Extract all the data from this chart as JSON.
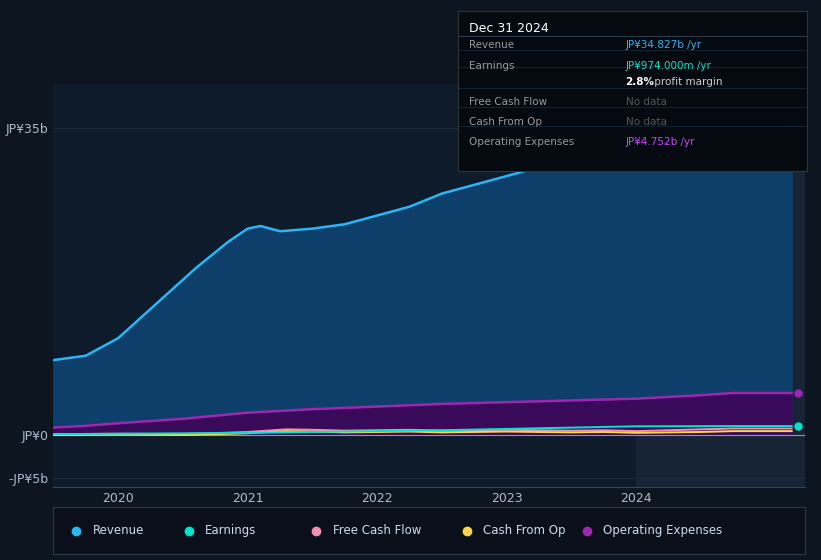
{
  "bg_color": "#0d1520",
  "plot_bg_color": "#0d1b2a",
  "grid_color": "#1a2e3e",
  "tooltip_title": "Dec 31 2024",
  "ylim": [
    -6000000000.0,
    40000000000.0
  ],
  "yticks_labels": [
    "JP¥35b",
    "JP¥0",
    "-JP¥5b"
  ],
  "yticks_values": [
    35000000000.0,
    0,
    -5000000000.0
  ],
  "xlim": [
    2019.5,
    2025.3
  ],
  "xticks": [
    2020,
    2021,
    2022,
    2023,
    2024
  ],
  "x_revenue": [
    2019.5,
    2019.75,
    2020.0,
    2020.3,
    2020.6,
    2020.85,
    2021.0,
    2021.1,
    2021.25,
    2021.5,
    2021.75,
    2022.0,
    2022.25,
    2022.5,
    2022.75,
    2023.0,
    2023.25,
    2023.5,
    2023.75,
    2024.0,
    2024.25,
    2024.5,
    2024.75,
    2025.0,
    2025.2
  ],
  "y_revenue": [
    8500000000.0,
    9000000000.0,
    11000000000.0,
    15000000000.0,
    19000000000.0,
    22000000000.0,
    23500000000.0,
    23800000000.0,
    23200000000.0,
    23500000000.0,
    24000000000.0,
    25000000000.0,
    26000000000.0,
    27500000000.0,
    28500000000.0,
    29500000000.0,
    30500000000.0,
    31500000000.0,
    32500000000.0,
    33500000000.0,
    34200000000.0,
    34600000000.0,
    34900000000.0,
    34827000000.0,
    34827000000.0
  ],
  "revenue_color": "#29b6f6",
  "revenue_fill_color": "#0d3f6a",
  "x_earnings": [
    2019.5,
    2020.0,
    2020.5,
    2021.0,
    2021.5,
    2022.0,
    2022.5,
    2023.0,
    2023.5,
    2024.0,
    2024.75,
    2025.2
  ],
  "y_earnings": [
    50000000.0,
    100000000.0,
    150000000.0,
    200000000.0,
    300000000.0,
    400000000.0,
    500000000.0,
    650000000.0,
    800000000.0,
    950000000.0,
    974000000.0,
    974000000.0
  ],
  "earnings_color": "#00e5cc",
  "x_fcf": [
    2019.5,
    2020.0,
    2020.5,
    2021.0,
    2021.3,
    2021.5,
    2021.75,
    2022.0,
    2022.25,
    2022.5,
    2022.75,
    2023.0,
    2023.25,
    2023.5,
    2023.75,
    2024.0,
    2024.5,
    2024.75,
    2025.2
  ],
  "y_fcf": [
    50000000.0,
    100000000.0,
    50000000.0,
    300000000.0,
    600000000.0,
    550000000.0,
    450000000.0,
    500000000.0,
    550000000.0,
    450000000.0,
    500000000.0,
    550000000.0,
    500000000.0,
    450000000.0,
    500000000.0,
    400000000.0,
    600000000.0,
    700000000.0,
    700000000.0
  ],
  "fcf_color": "#f48fb1",
  "x_cashfromop": [
    2019.5,
    2020.0,
    2020.5,
    2021.0,
    2021.3,
    2021.5,
    2021.75,
    2022.0,
    2022.25,
    2022.5,
    2022.75,
    2023.0,
    2023.25,
    2023.5,
    2023.75,
    2024.0,
    2024.5,
    2024.75,
    2025.2
  ],
  "y_cashfromop": [
    -50000000.0,
    0.0,
    -50000000.0,
    150000000.0,
    400000000.0,
    350000000.0,
    250000000.0,
    300000000.0,
    350000000.0,
    250000000.0,
    300000000.0,
    350000000.0,
    300000000.0,
    250000000.0,
    300000000.0,
    200000000.0,
    300000000.0,
    400000000.0,
    400000000.0
  ],
  "cashfromop_color": "#ffd54f",
  "x_opex": [
    2019.5,
    2019.75,
    2020.0,
    2020.5,
    2021.0,
    2021.5,
    2022.0,
    2022.5,
    2023.0,
    2023.5,
    2024.0,
    2024.5,
    2024.75,
    2025.0,
    2025.2
  ],
  "y_opex": [
    800000000.0,
    1000000000.0,
    1300000000.0,
    1800000000.0,
    2500000000.0,
    2900000000.0,
    3200000000.0,
    3500000000.0,
    3700000000.0,
    3900000000.0,
    4100000000.0,
    4500000000.0,
    4752000000.0,
    4752000000.0,
    4752000000.0
  ],
  "opex_color": "#9c27b0",
  "opex_fill_color": "#3a0a5a",
  "legend_items": [
    {
      "label": "Revenue",
      "color": "#29b6f6"
    },
    {
      "label": "Earnings",
      "color": "#00e5cc"
    },
    {
      "label": "Free Cash Flow",
      "color": "#f48fb1"
    },
    {
      "label": "Cash From Op",
      "color": "#ffd54f"
    },
    {
      "label": "Operating Expenses",
      "color": "#9c27b0"
    }
  ],
  "legend_bg": "#0a0f1a",
  "legend_border": "#2a3a4a",
  "highlight_start": 2024.0,
  "highlight_color": "#162436",
  "row_items": [
    {
      "label": "Revenue",
      "value": "JP¥34.827b /yr",
      "value_color": "#29b6f6",
      "nodata": false,
      "bold_prefix": ""
    },
    {
      "label": "Earnings",
      "value": "JP¥974.000m /yr",
      "value_color": "#00e5cc",
      "nodata": false,
      "bold_prefix": ""
    },
    {
      "label": "",
      "value": " profit margin",
      "value_color": "#cccccc",
      "nodata": false,
      "bold_prefix": "2.8%"
    },
    {
      "label": "Free Cash Flow",
      "value": "No data",
      "value_color": "#555555",
      "nodata": true,
      "bold_prefix": ""
    },
    {
      "label": "Cash From Op",
      "value": "No data",
      "value_color": "#555555",
      "nodata": true,
      "bold_prefix": ""
    },
    {
      "label": "Operating Expenses",
      "value": "JP¥4.752b /yr",
      "value_color": "#cc44ff",
      "nodata": false,
      "bold_prefix": ""
    }
  ]
}
